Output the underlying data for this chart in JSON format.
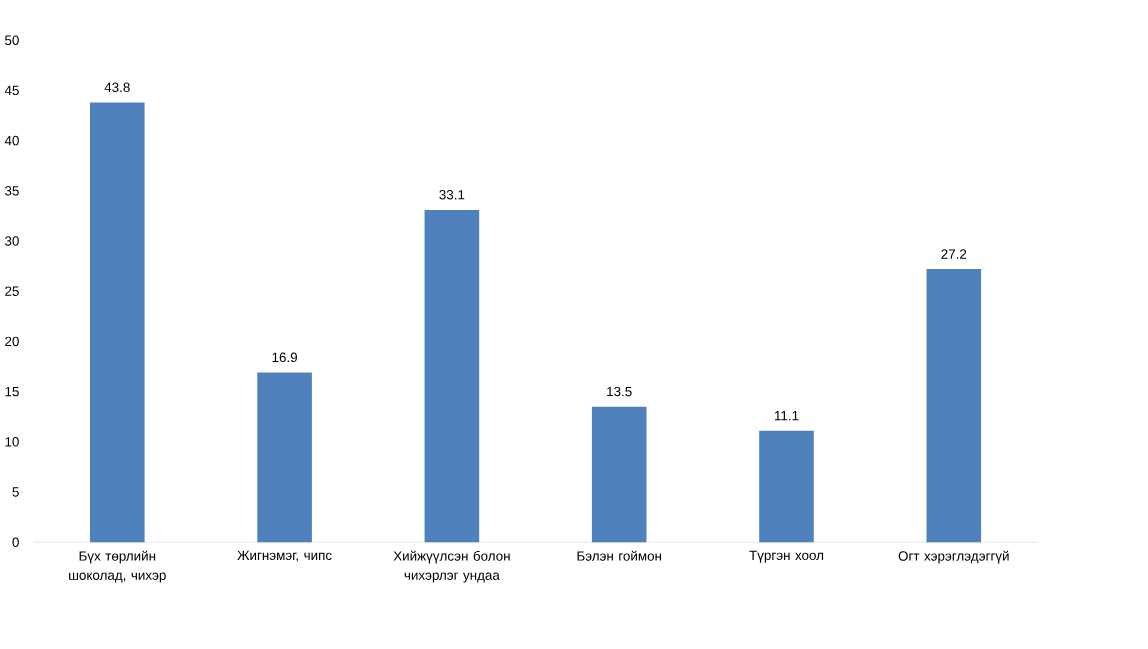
{
  "chart_data": {
    "type": "bar",
    "categories": [
      "Бүх төрлийн шоколад, чихэр",
      "Жигнэмэг, чипс",
      "Хийжүүлсэн болон чихэрлэг ундаа",
      "Бэлэн гоймон",
      "Түргэн хоол",
      "Огт хэрэглэдэггүй"
    ],
    "values": [
      43.8,
      16.9,
      33.1,
      13.5,
      11.1,
      27.2
    ],
    "color": "#4f81bd",
    "ylim": [
      0,
      50
    ],
    "yticks": [
      0,
      5,
      10,
      15,
      20,
      25,
      30,
      35,
      40,
      45,
      50
    ],
    "data_labels": true
  }
}
